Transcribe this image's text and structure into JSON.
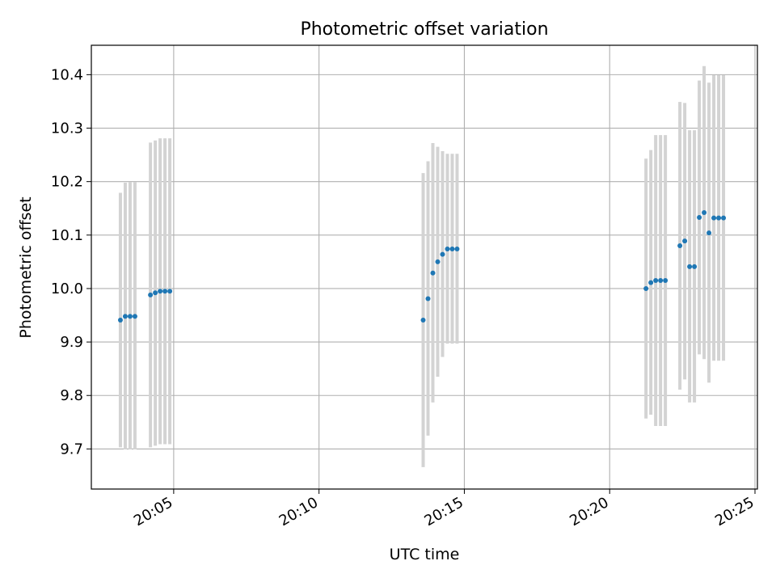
{
  "chart_data": {
    "type": "scatter",
    "title": "Photometric offset variation",
    "xlabel": "UTC time",
    "ylabel": "Photometric offset",
    "xlim": [
      "20:02:10",
      "20:25:05"
    ],
    "ylim": [
      9.625,
      10.455
    ],
    "grid": true,
    "xticks": [
      "20:05",
      "20:10",
      "20:15",
      "20:20",
      "20:25"
    ],
    "yticks": [
      9.7,
      9.8,
      9.9,
      10.0,
      10.1,
      10.2,
      10.3,
      10.4
    ],
    "series": [
      {
        "marker_color": "#1f77b4",
        "errorbar_color": "#d3d3d3",
        "points": [
          {
            "time": "20:03:10",
            "y": 9.941,
            "ylow": 9.703,
            "yhigh": 10.179
          },
          {
            "time": "20:03:20",
            "y": 9.948,
            "ylow": 9.699,
            "yhigh": 10.198
          },
          {
            "time": "20:03:30",
            "y": 9.948,
            "ylow": 9.699,
            "yhigh": 10.199
          },
          {
            "time": "20:03:40",
            "y": 9.948,
            "ylow": 9.699,
            "yhigh": 10.199
          },
          {
            "time": "20:04:12",
            "y": 9.988,
            "ylow": 9.703,
            "yhigh": 10.273
          },
          {
            "time": "20:04:22",
            "y": 9.992,
            "ylow": 9.706,
            "yhigh": 10.277
          },
          {
            "time": "20:04:32",
            "y": 9.995,
            "ylow": 9.709,
            "yhigh": 10.281
          },
          {
            "time": "20:04:42",
            "y": 9.995,
            "ylow": 9.709,
            "yhigh": 10.281
          },
          {
            "time": "20:04:52",
            "y": 9.995,
            "ylow": 9.709,
            "yhigh": 10.281
          },
          {
            "time": "20:13:35",
            "y": 9.941,
            "ylow": 9.666,
            "yhigh": 10.216
          },
          {
            "time": "20:13:45",
            "y": 9.981,
            "ylow": 9.725,
            "yhigh": 10.238
          },
          {
            "time": "20:13:55",
            "y": 10.029,
            "ylow": 9.787,
            "yhigh": 10.272
          },
          {
            "time": "20:14:05",
            "y": 10.05,
            "ylow": 9.835,
            "yhigh": 10.265
          },
          {
            "time": "20:14:15",
            "y": 10.064,
            "ylow": 9.872,
            "yhigh": 10.257
          },
          {
            "time": "20:14:25",
            "y": 10.074,
            "ylow": 9.897,
            "yhigh": 10.252
          },
          {
            "time": "20:14:35",
            "y": 10.074,
            "ylow": 9.897,
            "yhigh": 10.252
          },
          {
            "time": "20:14:45",
            "y": 10.074,
            "ylow": 9.897,
            "yhigh": 10.252
          },
          {
            "time": "20:21:15",
            "y": 10.0,
            "ylow": 9.757,
            "yhigh": 10.243
          },
          {
            "time": "20:21:25",
            "y": 10.011,
            "ylow": 9.764,
            "yhigh": 10.259
          },
          {
            "time": "20:21:35",
            "y": 10.015,
            "ylow": 9.743,
            "yhigh": 10.287
          },
          {
            "time": "20:21:45",
            "y": 10.015,
            "ylow": 9.743,
            "yhigh": 10.287
          },
          {
            "time": "20:21:55",
            "y": 10.015,
            "ylow": 9.743,
            "yhigh": 10.287
          },
          {
            "time": "20:22:25",
            "y": 10.08,
            "ylow": 9.811,
            "yhigh": 10.349
          },
          {
            "time": "20:22:35",
            "y": 10.089,
            "ylow": 9.83,
            "yhigh": 10.347
          },
          {
            "time": "20:22:45",
            "y": 10.041,
            "ylow": 9.787,
            "yhigh": 10.296
          },
          {
            "time": "20:22:55",
            "y": 10.041,
            "ylow": 9.787,
            "yhigh": 10.296
          },
          {
            "time": "20:23:05",
            "y": 10.133,
            "ylow": 9.877,
            "yhigh": 10.389
          },
          {
            "time": "20:23:15",
            "y": 10.142,
            "ylow": 9.868,
            "yhigh": 10.416
          },
          {
            "time": "20:23:25",
            "y": 10.104,
            "ylow": 9.824,
            "yhigh": 10.385
          },
          {
            "time": "20:23:35",
            "y": 10.132,
            "ylow": 9.865,
            "yhigh": 10.399
          },
          {
            "time": "20:23:45",
            "y": 10.132,
            "ylow": 9.865,
            "yhigh": 10.399
          },
          {
            "time": "20:23:55",
            "y": 10.132,
            "ylow": 9.865,
            "yhigh": 10.399
          }
        ]
      }
    ]
  }
}
